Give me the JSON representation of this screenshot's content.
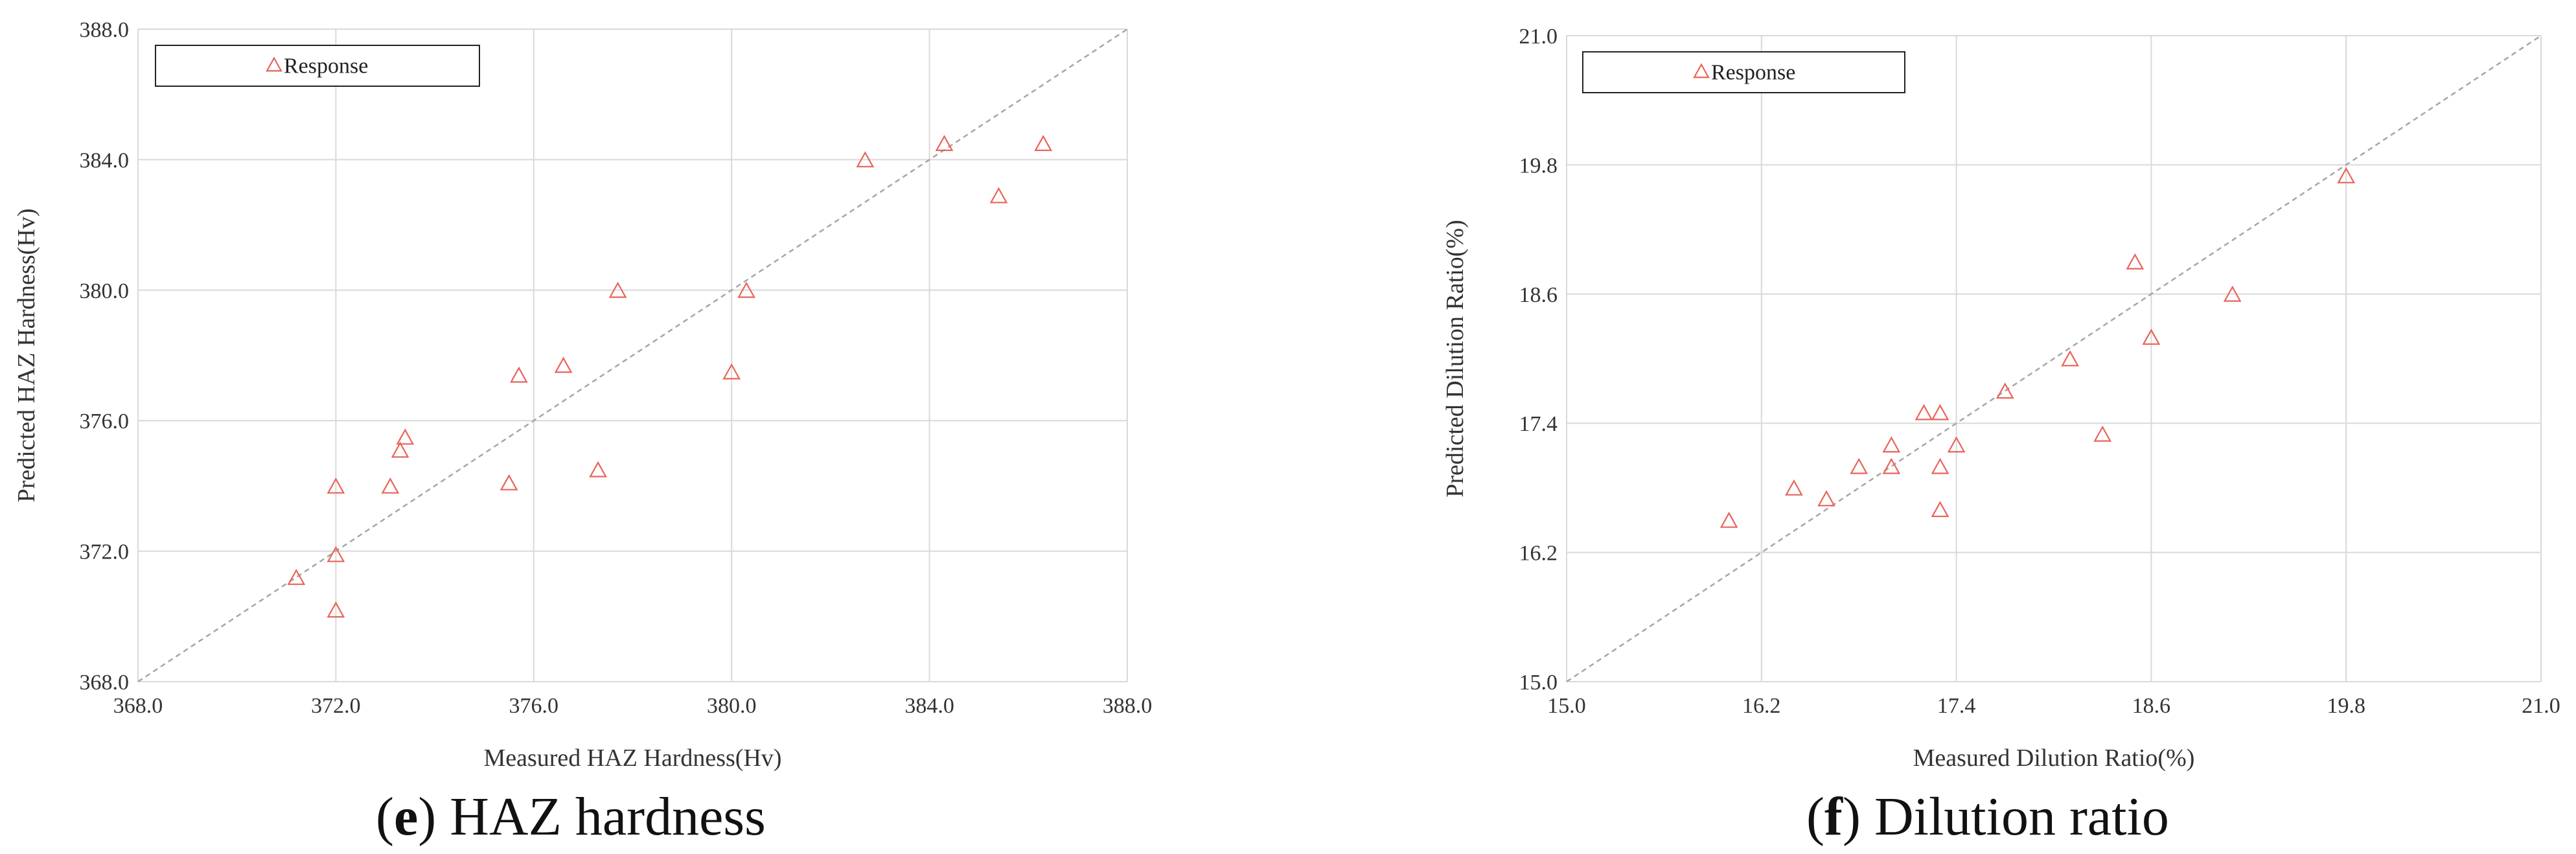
{
  "colors": {
    "marker": "#e8645a",
    "grid": "#d9d9d9",
    "diagonal": "#a6a6a6",
    "axis_text": "#333333"
  },
  "charts": [
    {
      "caption_letter": "e",
      "caption_rest": ") HAZ hardness",
      "caption_open": "("
    },
    {
      "caption_letter": "f",
      "caption_rest": ") Dilution ratio",
      "caption_open": "("
    }
  ],
  "chart_data": [
    {
      "type": "scatter",
      "xlabel": "Measured HAZ Hardness(Hv)",
      "ylabel": "Predicted HAZ Hardness(Hv)",
      "xlim": [
        368.0,
        388.0
      ],
      "ylim": [
        368.0,
        388.0
      ],
      "x_ticks": [
        "368.0",
        "372.0",
        "376.0",
        "380.0",
        "384.0",
        "388.0"
      ],
      "y_ticks": [
        "368.0",
        "372.0",
        "376.0",
        "380.0",
        "384.0",
        "388.0"
      ],
      "grid": true,
      "reference_line": "y = x",
      "legend": {
        "position": "top-left",
        "entries": [
          "Response"
        ]
      },
      "series": [
        {
          "name": "Response",
          "marker": "open-triangle",
          "points": [
            [
              371.2,
              371.2
            ],
            [
              372.0,
              370.2
            ],
            [
              372.0,
              371.9
            ],
            [
              372.0,
              374.0
            ],
            [
              373.1,
              374.0
            ],
            [
              373.3,
              375.1
            ],
            [
              373.4,
              375.5
            ],
            [
              375.5,
              374.1
            ],
            [
              375.7,
              377.4
            ],
            [
              376.6,
              377.7
            ],
            [
              377.3,
              374.5
            ],
            [
              377.7,
              380.0
            ],
            [
              380.0,
              377.5
            ],
            [
              380.3,
              380.0
            ],
            [
              382.7,
              384.0
            ],
            [
              384.3,
              384.5
            ],
            [
              385.4,
              382.9
            ],
            [
              386.3,
              384.5
            ]
          ]
        }
      ]
    },
    {
      "type": "scatter",
      "xlabel": "Measured Dilution Ratio(%)",
      "ylabel": "Predicted Dilution Ratio(%)",
      "xlim": [
        15.0,
        21.0
      ],
      "ylim": [
        15.0,
        21.0
      ],
      "x_ticks": [
        "15.0",
        "16.2",
        "17.4",
        "18.6",
        "19.8",
        "21.0"
      ],
      "y_ticks": [
        "15.0",
        "16.2",
        "17.4",
        "18.6",
        "19.8",
        "21.0"
      ],
      "grid": true,
      "reference_line": "y = x",
      "legend": {
        "position": "top-left",
        "entries": [
          "Response"
        ]
      },
      "series": [
        {
          "name": "Response",
          "marker": "open-triangle",
          "points": [
            [
              16.0,
              16.5
            ],
            [
              16.4,
              16.8
            ],
            [
              16.6,
              16.7
            ],
            [
              16.8,
              17.0
            ],
            [
              17.0,
              17.2
            ],
            [
              17.0,
              17.0
            ],
            [
              17.2,
              17.5
            ],
            [
              17.3,
              17.0
            ],
            [
              17.3,
              17.5
            ],
            [
              17.4,
              17.2
            ],
            [
              17.3,
              16.6
            ],
            [
              17.7,
              17.7
            ],
            [
              18.1,
              18.0
            ],
            [
              18.3,
              17.3
            ],
            [
              18.5,
              18.9
            ],
            [
              18.6,
              18.2
            ],
            [
              19.1,
              18.6
            ],
            [
              19.8,
              19.7
            ]
          ]
        }
      ]
    }
  ]
}
